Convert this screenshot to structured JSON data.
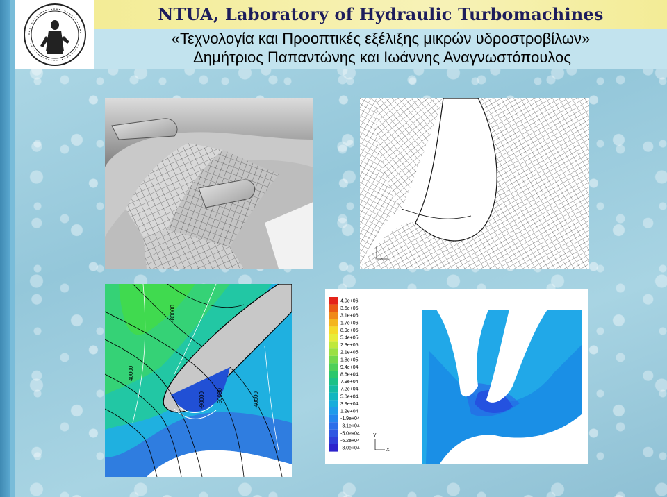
{
  "header": {
    "title": "NTUA, Laboratory of Hydraulic Turbomachines"
  },
  "subtitle": {
    "line1": "«Τεχνολογία και Προοπτικές εξέλιξης μικρών υδροστροβίλων»",
    "line2": "Δημήτριος Παπαντώνης και Ιωάννης Αναγνωστόπουλος"
  },
  "logo": {
    "icon": "ntua-seal-icon"
  },
  "panels": {
    "mesh_3d": {
      "icon": "turbine-mesh-3d-image"
    },
    "mesh_2d": {
      "icon": "blade-grid-2d-image"
    },
    "pressure_contours": {
      "labels": [
        "-80000",
        "40000",
        "-90000",
        "-50000",
        "-40000"
      ]
    },
    "pressure_field": {
      "legend_values": [
        "4.0e+06",
        "3.6e+06",
        "3.1e+06",
        "1.7e+06",
        "8.9e+05",
        "5.4e+05",
        "2.3e+05",
        "2.1e+05",
        "1.8e+05",
        "9.4e+04",
        "8.6e+04",
        "7.9e+04",
        "7.2e+04",
        "5.0e+04",
        "3.9e+04",
        "1.2e+04",
        "-1.9e+04",
        "-3.1e+04",
        "-5.0e+04",
        "-6.2e+04",
        "-8.0e+04"
      ],
      "legend_colors": [
        "#e4231a",
        "#ea5b16",
        "#f08a1a",
        "#f4b51e",
        "#f5da29",
        "#e8ec3a",
        "#bfe83c",
        "#9be043",
        "#74d84c",
        "#4ecf59",
        "#2cc76c",
        "#1cc187",
        "#14bba4",
        "#12b6c0",
        "#18addb",
        "#1f9bea",
        "#2486ee",
        "#2c6ee9",
        "#2f57e2",
        "#2f3ed9",
        "#2c22cc"
      ],
      "axis_x_label": "X",
      "axis_y_label": "Y"
    }
  }
}
